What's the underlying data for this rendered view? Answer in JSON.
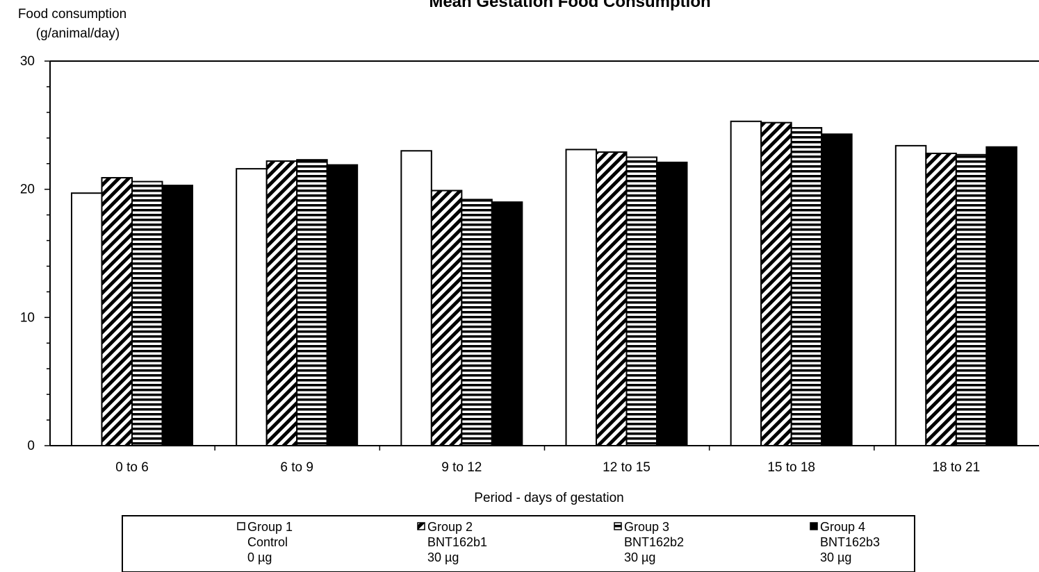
{
  "chart_data": {
    "type": "bar",
    "title": "Mean Gestation Food Consumption",
    "ylabel_line1": "Food consumption",
    "ylabel_line2": "(g/animal/day)",
    "xlabel": "Period - days of gestation",
    "ylim": [
      0,
      30
    ],
    "yticks": [
      "0",
      "10",
      "20",
      "30"
    ],
    "ytick_values": [
      0,
      10,
      20,
      30
    ],
    "categories": [
      "0 to 6",
      "6 to 9",
      "9 to 12",
      "12 to 15",
      "15 to 18",
      "18 to 21"
    ],
    "series": [
      {
        "name": "Group 1",
        "legend_lines": [
          "Group 1",
          "Control",
          "0 µg"
        ],
        "pattern": "white",
        "values": [
          19.7,
          21.6,
          23.0,
          23.1,
          25.3,
          23.4
        ]
      },
      {
        "name": "Group 2",
        "legend_lines": [
          "Group 2",
          "BNT162b1",
          "30 µg"
        ],
        "pattern": "diagonal-stripes",
        "values": [
          20.9,
          22.2,
          19.9,
          22.9,
          25.2,
          22.8
        ]
      },
      {
        "name": "Group 3",
        "legend_lines": [
          "Group 3",
          "BNT162b2",
          "30 µg"
        ],
        "pattern": "horizontal-stripes",
        "values": [
          20.6,
          22.3,
          19.2,
          22.5,
          24.8,
          22.7
        ]
      },
      {
        "name": "Group 4",
        "legend_lines": [
          "Group 4",
          "BNT162b3",
          "30 µg"
        ],
        "pattern": "solid-black",
        "values": [
          20.3,
          21.9,
          19.0,
          22.1,
          24.3,
          23.3
        ]
      }
    ],
    "legend_position": "bottom",
    "grid": false,
    "colors": {
      "bar_outline": "#000000",
      "bar_fill_white": "#ffffff",
      "bar_fill_black": "#000000"
    }
  }
}
